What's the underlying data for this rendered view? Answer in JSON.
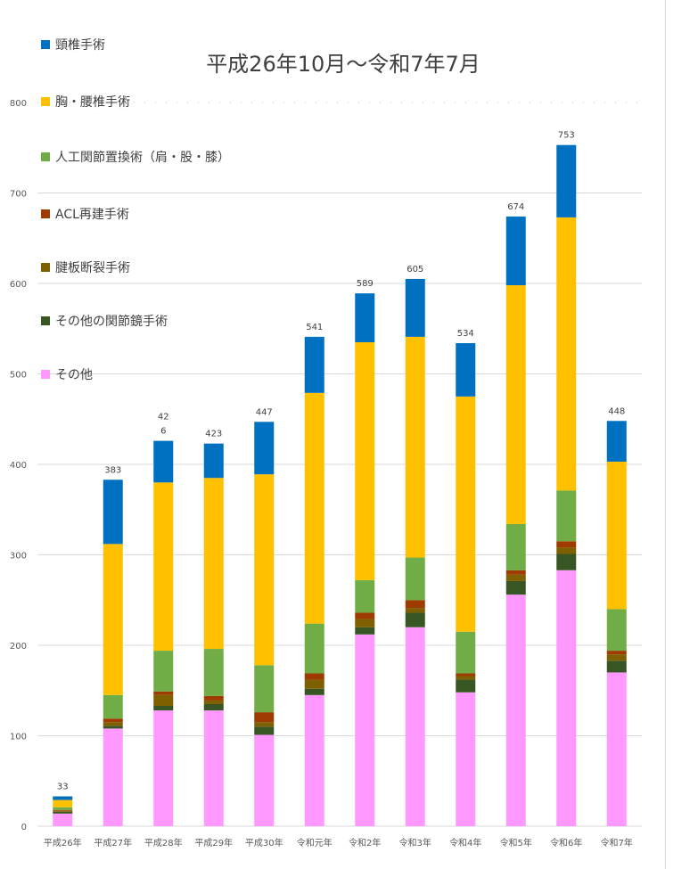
{
  "chart_data": {
    "type": "bar",
    "stacked": true,
    "title": "平成26年10月～令和7年7月",
    "categories": [
      "平成26年",
      "平成27年",
      "平成28年",
      "平成29年",
      "平成30年",
      "令和元年",
      "令和2年",
      "令和3年",
      "令和4年",
      "令和5年",
      "令和6年",
      "令和7年"
    ],
    "totals": [
      33,
      383,
      426,
      423,
      447,
      541,
      589,
      605,
      534,
      674,
      753,
      448
    ],
    "total_labels": [
      "33",
      "383",
      "42\n6",
      "423",
      "447",
      "541",
      "589",
      "605",
      "534",
      "674",
      "753",
      "448"
    ],
    "ylim": [
      0,
      800
    ],
    "yticks": [
      "0",
      "100",
      "200",
      "300",
      "400",
      "500",
      "600",
      "700",
      "800"
    ],
    "grid": true,
    "legend_position": "left",
    "series": [
      {
        "name": "その他",
        "color": "#ff99ff",
        "values": [
          14,
          108,
          128,
          128,
          101,
          145,
          212,
          220,
          148,
          256,
          283,
          170
        ]
      },
      {
        "name": "その他の関節鏡手術",
        "color": "#375623",
        "values": [
          2,
          3,
          5,
          7,
          9,
          7,
          8,
          16,
          14,
          15,
          18,
          13
        ]
      },
      {
        "name": "腱板断裂手術",
        "color": "#7f6000",
        "values": [
          1,
          4,
          12,
          4,
          5,
          10,
          9,
          5,
          4,
          7,
          7,
          7
        ]
      },
      {
        "name": "ACL再建手術",
        "color": "#9e3b00",
        "values": [
          1,
          4,
          4,
          5,
          11,
          7,
          7,
          9,
          3,
          5,
          7,
          4
        ]
      },
      {
        "name": "人工関節置換術（肩・股・膝）",
        "color": "#70ad47",
        "values": [
          3,
          26,
          45,
          52,
          52,
          55,
          36,
          47,
          46,
          51,
          56,
          46
        ]
      },
      {
        "name": "胸・腰椎手術",
        "color": "#ffc000",
        "values": [
          8,
          167,
          186,
          189,
          211,
          255,
          263,
          244,
          260,
          264,
          302,
          163
        ]
      },
      {
        "name": "頸椎手術",
        "color": "#0070c0",
        "values": [
          4,
          71,
          46,
          38,
          58,
          62,
          54,
          64,
          59,
          76,
          80,
          45
        ]
      }
    ],
    "legend_order": [
      "頸椎手術",
      "胸・腰椎手術",
      "人工関節置換術（肩・股・膝）",
      "ACL再建手術",
      "腱板断裂手術",
      "その他の関節鏡手術",
      "その他"
    ]
  }
}
